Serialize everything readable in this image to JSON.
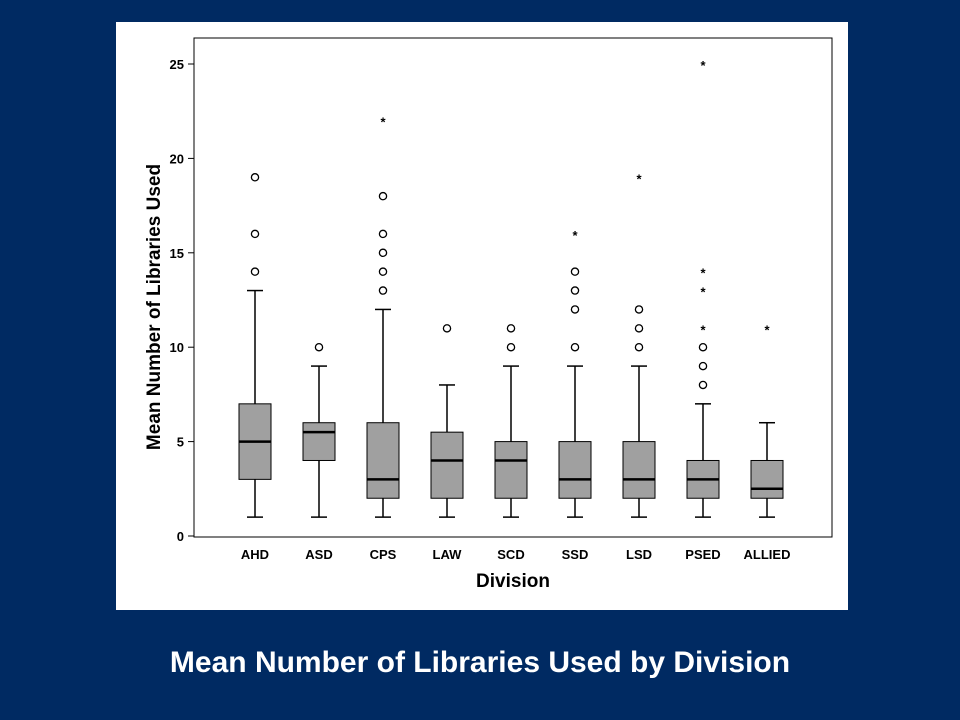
{
  "slide": {
    "title": "Mean Number of Libraries Used by Division",
    "background": "#002a62",
    "title_color": "#ffffff"
  },
  "chart_data": {
    "type": "boxplot",
    "title": "",
    "xlabel": "Division",
    "ylabel": "Mean Number of Libraries Used",
    "ylim": [
      0,
      26
    ],
    "yticks": [
      0,
      5,
      10,
      15,
      20,
      25
    ],
    "grid": false,
    "box_color": "#a0a0a0",
    "categories": [
      "AHD",
      "ASD",
      "CPS",
      "LAW",
      "SCD",
      "SSD",
      "LSD",
      "PSED",
      "ALLIED"
    ],
    "boxes": [
      {
        "category": "AHD",
        "whisker_low": 1,
        "q1": 3,
        "median": 5,
        "q3": 7,
        "whisker_high": 13,
        "outliers": [
          14,
          16,
          19
        ],
        "extremes": []
      },
      {
        "category": "ASD",
        "whisker_low": 1,
        "q1": 4,
        "median": 5.5,
        "q3": 6,
        "whisker_high": 9,
        "outliers": [
          10
        ],
        "extremes": []
      },
      {
        "category": "CPS",
        "whisker_low": 1,
        "q1": 2,
        "median": 3,
        "q3": 6,
        "whisker_high": 12,
        "outliers": [
          13,
          14,
          15,
          16,
          18
        ],
        "extremes": [
          22
        ]
      },
      {
        "category": "LAW",
        "whisker_low": 1,
        "q1": 2,
        "median": 4,
        "q3": 5.5,
        "whisker_high": 8,
        "outliers": [
          11
        ],
        "extremes": []
      },
      {
        "category": "SCD",
        "whisker_low": 1,
        "q1": 2,
        "median": 4,
        "q3": 5,
        "whisker_high": 9,
        "outliers": [
          10,
          11
        ],
        "extremes": []
      },
      {
        "category": "SSD",
        "whisker_low": 1,
        "q1": 2,
        "median": 3,
        "q3": 5,
        "whisker_high": 9,
        "outliers": [
          10,
          12,
          13,
          14
        ],
        "extremes": [
          16
        ]
      },
      {
        "category": "LSD",
        "whisker_low": 1,
        "q1": 2,
        "median": 3,
        "q3": 5,
        "whisker_high": 9,
        "outliers": [
          10,
          11,
          12
        ],
        "extremes": [
          19
        ]
      },
      {
        "category": "PSED",
        "whisker_low": 1,
        "q1": 2,
        "median": 3,
        "q3": 4,
        "whisker_high": 7,
        "outliers": [
          8,
          9,
          10
        ],
        "extremes": [
          11,
          13,
          14,
          25
        ]
      },
      {
        "category": "ALLIED",
        "whisker_low": 1,
        "q1": 2,
        "median": 2.5,
        "q3": 4,
        "whisker_high": 6,
        "outliers": [],
        "extremes": [
          11
        ]
      }
    ]
  }
}
